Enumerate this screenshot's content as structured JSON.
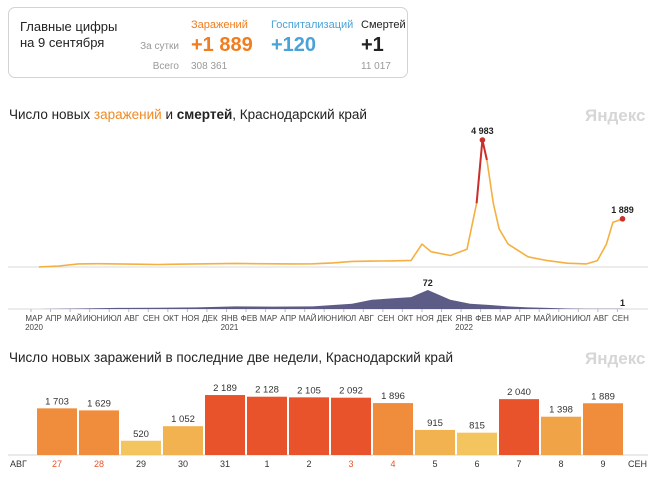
{
  "summary": {
    "title_line1": "Главные цифры",
    "title_line2": "на 9 сентября",
    "row_today": "За сутки",
    "row_total": "Всего",
    "infections": {
      "label": "Заражений",
      "today": "+1 889",
      "total": "308 361",
      "color": "#f07d1e"
    },
    "hospitalizations": {
      "label": "Госпитализаций",
      "today": "+120",
      "color": "#4aa3d8"
    },
    "deaths": {
      "label": "Смертей",
      "today": "+1",
      "total": "11 017",
      "color": "#222222"
    }
  },
  "chart1": {
    "title_pre": "Число новых ",
    "title_infections": "заражений",
    "title_mid": " и ",
    "title_deaths": "смертей",
    "title_post": ", Краснодарский край",
    "watermark": "Яндекс",
    "infection_peak_label": "4 983",
    "infection_last_label": "1 889",
    "deaths_peak_label": "72",
    "deaths_last_label": "1",
    "colors": {
      "infections": "#f5b040",
      "infections_peak": "#c9302c",
      "deaths": "#4a4a7a"
    }
  },
  "chart2": {
    "title": "Число новых заражений в последние две недели, Краснодарский край",
    "watermark": "Яндекс",
    "month_left": "АВГ",
    "month_right": "СЕН"
  },
  "chart_data": [
    {
      "type": "area",
      "title": "Число новых заражений и смертей, Краснодарский край",
      "x_labels": [
        "МАР 2020",
        "АПР",
        "МАЙ",
        "ИЮН",
        "ИЮЛ",
        "АВГ",
        "СЕН",
        "ОКТ",
        "НОЯ",
        "ДЕК",
        "ЯНВ 2021",
        "ФЕВ",
        "МАР",
        "АПР",
        "МАЙ",
        "ИЮН",
        "ИЮЛ",
        "АВГ",
        "СЕН",
        "ОКТ",
        "НОЯ",
        "ДЕК",
        "ЯНВ 2022",
        "ФЕВ",
        "МАР",
        "АПР",
        "МАЙ",
        "ИЮН",
        "ИЮЛ",
        "АВГ",
        "СЕН"
      ],
      "series": [
        {
          "name": "заражений",
          "x": [
            "2020-03-15",
            "2020-04-15",
            "2020-05-15",
            "2020-06-15",
            "2020-07-15",
            "2020-08-15",
            "2020-09-15",
            "2020-10-15",
            "2020-11-15",
            "2020-12-15",
            "2021-01-15",
            "2021-02-15",
            "2021-03-15",
            "2021-04-15",
            "2021-05-15",
            "2021-06-15",
            "2021-07-15",
            "2021-08-15",
            "2021-09-15",
            "2021-10-15",
            "2021-11-01",
            "2021-11-15",
            "2021-12-15",
            "2022-01-10",
            "2022-01-25",
            "2022-02-03",
            "2022-02-10",
            "2022-02-20",
            "2022-03-01",
            "2022-03-15",
            "2022-04-15",
            "2022-05-15",
            "2022-06-15",
            "2022-07-15",
            "2022-08-01",
            "2022-08-15",
            "2022-08-25",
            "2022-09-09"
          ],
          "values": [
            5,
            40,
            120,
            130,
            120,
            110,
            100,
            110,
            120,
            130,
            140,
            130,
            125,
            120,
            125,
            160,
            220,
            230,
            240,
            260,
            900,
            600,
            450,
            700,
            2500,
            4983,
            4200,
            2500,
            1500,
            900,
            400,
            250,
            150,
            120,
            250,
            900,
            1750,
            1889
          ]
        },
        {
          "name": "смертей",
          "x": [
            "2020-03-15",
            "2020-05-15",
            "2020-07-15",
            "2020-09-15",
            "2020-11-15",
            "2021-01-15",
            "2021-03-15",
            "2021-05-15",
            "2021-07-15",
            "2021-08-15",
            "2021-09-15",
            "2021-10-15",
            "2021-11-10",
            "2021-12-15",
            "2022-01-15",
            "2022-02-15",
            "2022-03-15",
            "2022-04-15",
            "2022-05-15",
            "2022-06-15",
            "2022-07-15",
            "2022-08-15",
            "2022-09-09"
          ],
          "values": [
            0,
            2,
            4,
            5,
            6,
            10,
            9,
            10,
            20,
            35,
            40,
            45,
            72,
            35,
            20,
            15,
            10,
            6,
            4,
            2,
            1,
            1,
            1
          ]
        }
      ]
    },
    {
      "type": "bar",
      "title": "Число новых заражений в последние две недели, Краснодарский край",
      "categories": [
        "27",
        "28",
        "29",
        "30",
        "31",
        "1",
        "2",
        "3",
        "4",
        "5",
        "6",
        "7",
        "8",
        "9"
      ],
      "months": [
        "АВГ",
        "СЕН"
      ],
      "values": [
        1703,
        1629,
        520,
        1052,
        2189,
        2128,
        2105,
        2092,
        1896,
        915,
        815,
        2040,
        1398,
        1889
      ],
      "value_labels": [
        "1 703",
        "1 629",
        "520",
        "1 052",
        "2 189",
        "2 128",
        "2 105",
        "2 092",
        "1 896",
        "915",
        "815",
        "2 040",
        "1 398",
        "1 889"
      ],
      "weekend_categories": [
        "27",
        "28",
        "3",
        "4"
      ],
      "ylim": [
        0,
        2300
      ]
    }
  ]
}
